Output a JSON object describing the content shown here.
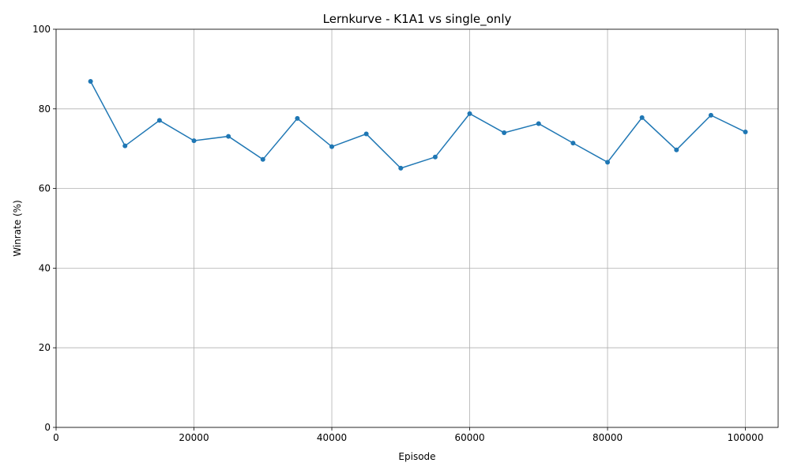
{
  "chart_data": {
    "type": "line",
    "title": "Lernkurve - K1A1 vs single_only",
    "xlabel": "Episode",
    "ylabel": "Winrate (%)",
    "xlim": [
      0,
      104750
    ],
    "ylim": [
      0,
      100
    ],
    "xticks": [
      0,
      20000,
      40000,
      60000,
      80000,
      100000
    ],
    "yticks": [
      0,
      20,
      40,
      60,
      80,
      100
    ],
    "grid": true,
    "line_color": "#1f77b4",
    "x": [
      5000,
      10000,
      15000,
      20000,
      25000,
      30000,
      35000,
      40000,
      45000,
      50000,
      55000,
      60000,
      65000,
      70000,
      75000,
      80000,
      85000,
      90000,
      95000,
      100000
    ],
    "y": [
      86.9,
      70.7,
      77.1,
      72.0,
      73.1,
      67.3,
      77.6,
      70.5,
      73.7,
      65.1,
      67.9,
      78.8,
      74.0,
      76.3,
      71.4,
      66.6,
      77.8,
      69.7,
      78.4,
      74.2
    ]
  }
}
